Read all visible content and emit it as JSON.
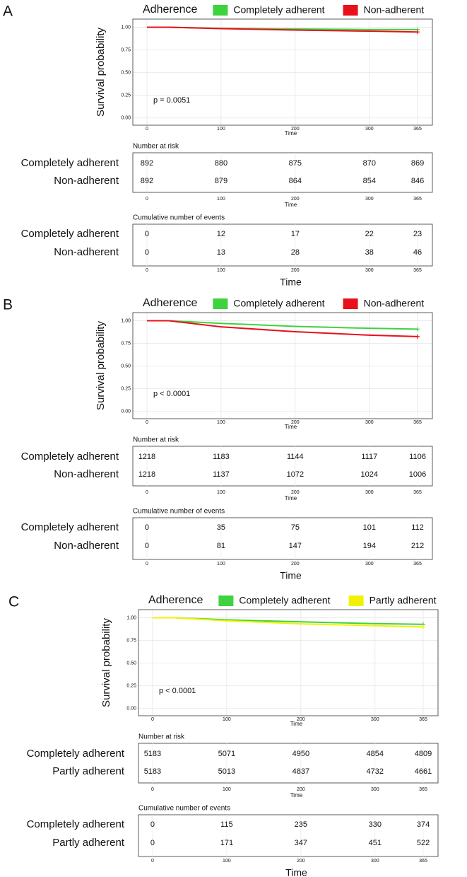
{
  "chart_data": [
    {
      "type": "line",
      "label": "A",
      "legend_title": "Adherence",
      "y_label": "Survival probability",
      "x_label": "Time",
      "annotation": "p = 0.0051",
      "x": [
        0,
        30,
        100,
        200,
        300,
        365
      ],
      "series": [
        {
          "name": "Completely adherent",
          "color": "#3fd23f",
          "values": [
            1,
            1,
            0.987,
            0.981,
            0.975,
            0.974
          ]
        },
        {
          "name": "Non-adherent",
          "color": "#e8101a",
          "values": [
            1,
            1,
            0.985,
            0.969,
            0.957,
            0.948
          ]
        }
      ],
      "xlim": [
        -19,
        385
      ],
      "xticks": [
        0,
        100,
        200,
        300,
        365
      ],
      "ylim": [
        -0.08,
        1.09
      ],
      "yticks": [
        {
          "value": 0,
          "label": "0.00"
        },
        {
          "value": 0.25,
          "label": "0.25"
        },
        {
          "value": 0.5,
          "label": "0.50"
        },
        {
          "value": 0.75,
          "label": "0.75"
        },
        {
          "value": 1,
          "label": "1.00"
        }
      ],
      "grid": true,
      "tables": [
        {
          "title": "Number at risk",
          "rows": [
            {
              "name": "Completely adherent",
              "values": [
                892,
                880,
                875,
                870,
                869
              ]
            },
            {
              "name": "Non-adherent",
              "values": [
                892,
                879,
                864,
                854,
                846
              ]
            }
          ]
        },
        {
          "title": "Cumulative number of events",
          "rows": [
            {
              "name": "Completely adherent",
              "values": [
                0,
                12,
                17,
                22,
                23
              ]
            },
            {
              "name": "Non-adherent",
              "values": [
                0,
                13,
                28,
                38,
                46
              ]
            }
          ]
        }
      ]
    },
    {
      "type": "line",
      "label": "B",
      "legend_title": "Adherence",
      "y_label": "Survival probability",
      "x_label": "Time",
      "annotation": "p < 0.0001",
      "x": [
        0,
        30,
        100,
        200,
        300,
        365
      ],
      "series": [
        {
          "name": "Completely adherent",
          "color": "#3fd23f",
          "values": [
            1,
            1,
            0.971,
            0.938,
            0.917,
            0.908
          ]
        },
        {
          "name": "Non-adherent",
          "color": "#e8101a",
          "values": [
            1,
            1,
            0.933,
            0.879,
            0.841,
            0.826
          ]
        }
      ],
      "xlim": [
        -19,
        385
      ],
      "xticks": [
        0,
        100,
        200,
        300,
        365
      ],
      "ylim": [
        -0.08,
        1.09
      ],
      "yticks": [
        {
          "value": 0,
          "label": "0.00"
        },
        {
          "value": 0.25,
          "label": "0.25"
        },
        {
          "value": 0.5,
          "label": "0.50"
        },
        {
          "value": 0.75,
          "label": "0.75"
        },
        {
          "value": 1,
          "label": "1.00"
        }
      ],
      "grid": true,
      "tables": [
        {
          "title": "Number at risk",
          "rows": [
            {
              "name": "Completely adherent",
              "values": [
                1218,
                1183,
                1144,
                1117,
                1106
              ]
            },
            {
              "name": "Non-adherent",
              "values": [
                1218,
                1137,
                1072,
                1024,
                1006
              ]
            }
          ]
        },
        {
          "title": "Cumulative number of events",
          "rows": [
            {
              "name": "Completely adherent",
              "values": [
                0,
                35,
                75,
                101,
                112
              ]
            },
            {
              "name": "Non-adherent",
              "values": [
                0,
                81,
                147,
                194,
                212
              ]
            }
          ]
        }
      ]
    },
    {
      "type": "line",
      "label": "C",
      "legend_title": "Adherence",
      "y_label": "Survival probability",
      "x_label": "Time",
      "annotation": "p < 0.0001",
      "x": [
        0,
        30,
        100,
        200,
        300,
        365
      ],
      "series": [
        {
          "name": "Completely adherent",
          "color": "#3fd23f",
          "values": [
            1,
            1,
            0.978,
            0.955,
            0.936,
            0.928
          ]
        },
        {
          "name": "Partly adherent",
          "color": "#f2f200",
          "values": [
            1,
            1,
            0.967,
            0.933,
            0.913,
            0.899
          ]
        }
      ],
      "xlim": [
        -19,
        385
      ],
      "xticks": [
        0,
        100,
        200,
        300,
        365
      ],
      "ylim": [
        -0.08,
        1.09
      ],
      "yticks": [
        {
          "value": 0,
          "label": "0.00"
        },
        {
          "value": 0.25,
          "label": "0.25"
        },
        {
          "value": 0.5,
          "label": "0.50"
        },
        {
          "value": 0.75,
          "label": "0.75"
        },
        {
          "value": 1,
          "label": "1.00"
        }
      ],
      "grid": true,
      "tables": [
        {
          "title": "Number at risk",
          "rows": [
            {
              "name": "Completely adherent",
              "values": [
                5183,
                5071,
                4950,
                4854,
                4809
              ]
            },
            {
              "name": "Partly adherent",
              "values": [
                5183,
                5013,
                4837,
                4732,
                4661
              ]
            }
          ]
        },
        {
          "title": "Cumulative number of events",
          "rows": [
            {
              "name": "Completely adherent",
              "values": [
                0,
                115,
                235,
                330,
                374
              ]
            },
            {
              "name": "Partly adherent",
              "values": [
                0,
                171,
                347,
                451,
                522
              ]
            }
          ]
        }
      ]
    }
  ]
}
